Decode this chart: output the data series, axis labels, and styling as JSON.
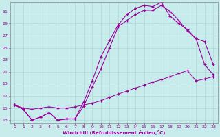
{
  "xlabel": "Windchill (Refroidissement éolien,°C)",
  "bg_color": "#c8ecec",
  "grid_color": "#b0d8d8",
  "line_color": "#990099",
  "x_min": -0.5,
  "x_max": 23.5,
  "y_min": 12.5,
  "y_max": 32.5,
  "yticks": [
    13,
    15,
    17,
    19,
    21,
    23,
    25,
    27,
    29,
    31
  ],
  "xticks": [
    0,
    1,
    2,
    3,
    4,
    5,
    6,
    7,
    8,
    9,
    10,
    11,
    12,
    13,
    14,
    15,
    16,
    17,
    18,
    19,
    20,
    21,
    22,
    23
  ],
  "line1_x": [
    0,
    1,
    2,
    3,
    4,
    5,
    6,
    7,
    8,
    9,
    10,
    11,
    12,
    13,
    14,
    15,
    16,
    17,
    18,
    19,
    20,
    21,
    22,
    23
  ],
  "line1_y": [
    15.5,
    14.8,
    13.0,
    13.5,
    14.2,
    13.0,
    13.2,
    13.2,
    15.3,
    18.5,
    21.5,
    25.0,
    28.5,
    29.5,
    30.5,
    31.2,
    31.2,
    32.0,
    31.0,
    29.5,
    27.8,
    26.5,
    22.2,
    20.5
  ],
  "line2_x": [
    0,
    1,
    2,
    3,
    4,
    5,
    6,
    7,
    8,
    9,
    10,
    11,
    12,
    13,
    14,
    15,
    16,
    17,
    18,
    19,
    20,
    21,
    22,
    23
  ],
  "line2_y": [
    15.5,
    14.8,
    13.0,
    13.5,
    14.2,
    13.0,
    13.2,
    13.2,
    16.0,
    19.5,
    23.5,
    26.2,
    28.8,
    30.5,
    31.5,
    32.0,
    31.8,
    32.5,
    30.2,
    29.0,
    28.0,
    26.5,
    26.0,
    22.2
  ],
  "line3_x": [
    0,
    1,
    2,
    3,
    4,
    5,
    6,
    7,
    8,
    9,
    10,
    11,
    12,
    13,
    14,
    15,
    16,
    17,
    18,
    19,
    20,
    21,
    22,
    23
  ],
  "line3_y": [
    15.5,
    15.0,
    14.8,
    15.0,
    15.2,
    15.0,
    15.0,
    15.2,
    15.5,
    15.8,
    16.2,
    16.8,
    17.3,
    17.8,
    18.3,
    18.8,
    19.3,
    19.7,
    20.2,
    20.7,
    21.2,
    19.5,
    19.8,
    20.2
  ]
}
